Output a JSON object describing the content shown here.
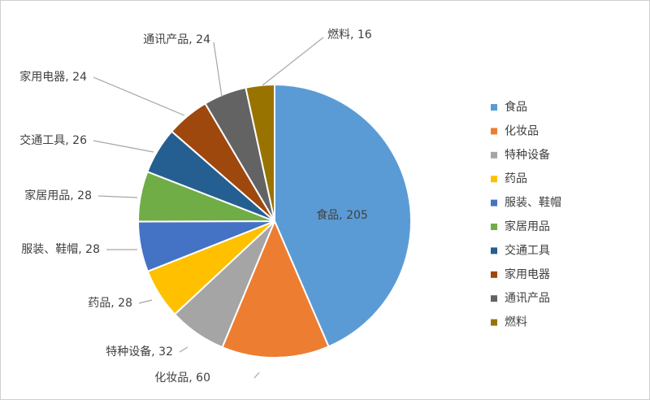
{
  "chart_data": {
    "type": "pie",
    "title": "",
    "legend_position": "right",
    "slices": [
      {
        "name": "食品",
        "value": 205,
        "label": "食品, 205",
        "color": "#5B9BD5"
      },
      {
        "name": "化妆品",
        "value": 60,
        "label": "化妆品, 60",
        "color": "#ED7D31"
      },
      {
        "name": "特种设备",
        "value": 32,
        "label": "特种设备, 32",
        "color": "#A5A5A5"
      },
      {
        "name": "药品",
        "value": 28,
        "label": "药品, 28",
        "color": "#FFC000"
      },
      {
        "name": "服装、鞋帽",
        "value": 28,
        "label": "服装、鞋帽, 28",
        "color": "#4472C4"
      },
      {
        "name": "家居用品",
        "value": 28,
        "label": "家居用品, 28",
        "color": "#70AD47"
      },
      {
        "name": "交通工具",
        "value": 26,
        "label": "交通工具, 26",
        "color": "#255E91"
      },
      {
        "name": "家用电器",
        "value": 24,
        "label": "家用电器, 24",
        "color": "#9E480E"
      },
      {
        "name": "通讯产品",
        "value": 24,
        "label": "通讯产品, 24",
        "color": "#636363"
      },
      {
        "name": "燃料",
        "value": 16,
        "label": "燃料, 16",
        "color": "#997300"
      }
    ]
  }
}
